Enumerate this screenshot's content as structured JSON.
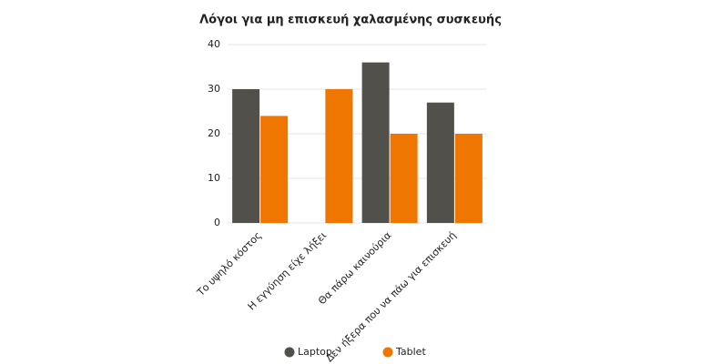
{
  "chart_data": {
    "type": "bar",
    "title": "Λόγοι για μη επισκευή χαλασμένης συσκευής",
    "categories": [
      "Το υψηλό κόστος",
      "Η εγγύηση είχε λήξει",
      "Θα πάρω καινούρια",
      "Δεν ήξερα που να πάω για επισκευή"
    ],
    "series": [
      {
        "name": "Laptop",
        "color": "#52504b",
        "values": [
          30,
          0,
          36,
          27
        ]
      },
      {
        "name": "Tablet",
        "color": "#ef7600",
        "values": [
          24,
          30,
          20,
          20
        ]
      }
    ],
    "ylim": [
      0,
      40
    ],
    "yticks": [
      0,
      10,
      20,
      30,
      40
    ],
    "grid": true,
    "legend": "bottom"
  }
}
